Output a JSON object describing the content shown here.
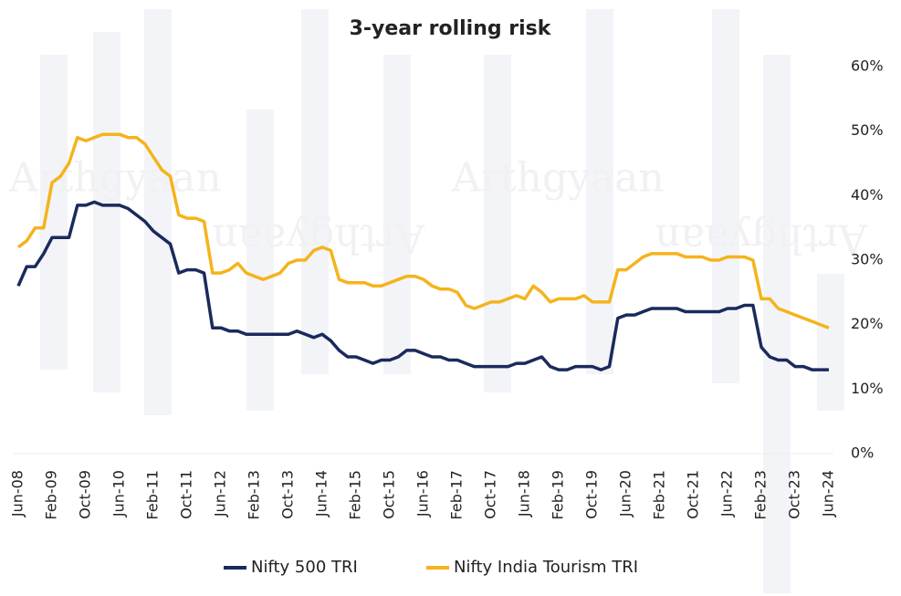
{
  "chart_data": {
    "type": "line",
    "title": "3-year rolling risk",
    "watermark": "Arthgyaan",
    "categories": [
      "Jun-08",
      null,
      null,
      null,
      "Feb-09",
      null,
      null,
      null,
      "Oct-09",
      null,
      null,
      null,
      "Jun-10",
      null,
      null,
      null,
      "Feb-11",
      null,
      null,
      null,
      "Oct-11",
      null,
      null,
      null,
      "Jun-12",
      null,
      null,
      null,
      "Feb-13",
      null,
      null,
      null,
      "Oct-13",
      null,
      null,
      null,
      "Jun-14",
      null,
      null,
      null,
      "Feb-15",
      null,
      null,
      null,
      "Oct-15",
      null,
      null,
      null,
      "Jun-16",
      null,
      null,
      null,
      "Feb-17",
      null,
      null,
      null,
      "Oct-17",
      null,
      null,
      null,
      "Jun-18",
      null,
      null,
      null,
      "Feb-19",
      null,
      null,
      null,
      "Oct-19",
      null,
      null,
      null,
      "Jun-20",
      null,
      null,
      null,
      "Feb-21",
      null,
      null,
      null,
      "Oct-21",
      null,
      null,
      null,
      "Jun-22",
      null,
      null,
      null,
      "Feb-23",
      null,
      null,
      null,
      "Oct-23",
      null,
      null,
      null,
      "Jun-24"
    ],
    "series": [
      {
        "name": "Nifty 500 TRI",
        "color": "#1b2a5c",
        "values": [
          26,
          29,
          29,
          31,
          33.5,
          33.5,
          33.5,
          38.5,
          38.5,
          39,
          38.5,
          38.5,
          38.5,
          38,
          37,
          36,
          34.5,
          33.5,
          32.5,
          28,
          28.5,
          28.5,
          28,
          19.5,
          19.5,
          19,
          19,
          18.5,
          18.5,
          18.5,
          18.5,
          18.5,
          18.5,
          19,
          18.5,
          18,
          18.5,
          17.5,
          16,
          15,
          15,
          14.5,
          14,
          14.5,
          14.5,
          15,
          16,
          16,
          15.5,
          15,
          15,
          14.5,
          14.5,
          14,
          13.5,
          13.5,
          13.5,
          13.5,
          13.5,
          14,
          14,
          14.5,
          15,
          13.5,
          13,
          13,
          13.5,
          13.5,
          13.5,
          13,
          13.5,
          21,
          21.5,
          21.5,
          22,
          22.5,
          22.5,
          22.5,
          22.5,
          22,
          22,
          22,
          22,
          22,
          22.5,
          22.5,
          23,
          23,
          16.5,
          15,
          14.5,
          14.5,
          13.5,
          13.5,
          13,
          13,
          13
        ]
      },
      {
        "name": "Nifty India Tourism TRI",
        "color": "#f5b31c",
        "values": [
          32,
          33,
          35,
          35,
          42,
          43,
          45,
          49,
          48.5,
          49,
          49.5,
          49.5,
          49.5,
          49,
          49,
          48,
          46,
          44,
          43,
          37,
          36.5,
          36.5,
          36,
          28,
          28,
          28.5,
          29.5,
          28,
          27.5,
          27,
          27.5,
          28,
          29.5,
          30,
          30,
          31.5,
          32,
          31.5,
          27,
          26.5,
          26.5,
          26.5,
          26,
          26,
          26.5,
          27,
          27.5,
          27.5,
          27,
          26,
          25.5,
          25.5,
          25,
          23,
          22.5,
          23,
          23.5,
          23.5,
          24,
          24.5,
          24,
          26,
          25,
          23.5,
          24,
          24,
          24,
          24.5,
          23.5,
          23.5,
          23.5,
          28.5,
          28.5,
          29.5,
          30.5,
          31,
          31,
          31,
          31,
          30.5,
          30.5,
          30.5,
          30,
          30,
          30.5,
          30.5,
          30.5,
          30,
          24,
          24,
          22.5,
          22,
          21.5,
          21,
          20.5,
          20,
          19.5
        ]
      }
    ],
    "ylim": [
      0,
      60
    ],
    "yticks": [
      {
        "value": 0,
        "label": "0%"
      },
      {
        "value": 10,
        "label": "10%"
      },
      {
        "value": 20,
        "label": "20%"
      },
      {
        "value": 30,
        "label": "30%"
      },
      {
        "value": 40,
        "label": "40%"
      },
      {
        "value": 50,
        "label": "50%"
      },
      {
        "value": 60,
        "label": "60%"
      }
    ],
    "y_axis_side": "right",
    "grid": false
  }
}
